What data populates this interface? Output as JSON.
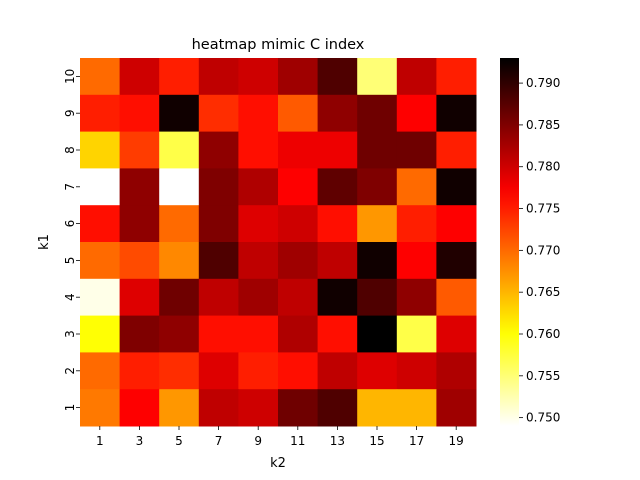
{
  "chart_data": {
    "type": "heatmap",
    "title": "heatmap mimic C index",
    "xlabel": "k2",
    "ylabel": "k1",
    "x_categories": [
      "1",
      "3",
      "5",
      "7",
      "9",
      "11",
      "13",
      "15",
      "17",
      "19"
    ],
    "y_categories": [
      "10",
      "9",
      "8",
      "7",
      "6",
      "5",
      "4",
      "3",
      "2",
      "1"
    ],
    "values": [
      [
        0.77,
        0.78,
        0.775,
        0.781,
        0.78,
        0.783,
        0.788,
        0.755,
        0.781,
        0.775
      ],
      [
        0.775,
        0.776,
        0.792,
        0.774,
        0.776,
        0.771,
        0.784,
        0.786,
        0.777,
        0.792
      ],
      [
        0.763,
        0.773,
        0.757,
        0.784,
        0.776,
        0.778,
        0.778,
        0.786,
        0.786,
        0.775
      ],
      [
        0.749,
        0.784,
        0.749,
        0.785,
        0.782,
        0.777,
        0.787,
        0.785,
        0.77,
        0.792
      ],
      [
        0.776,
        0.784,
        0.77,
        0.785,
        0.779,
        0.78,
        0.776,
        0.767,
        0.775,
        0.777
      ],
      [
        0.77,
        0.772,
        0.768,
        0.788,
        0.781,
        0.783,
        0.781,
        0.792,
        0.777,
        0.791
      ],
      [
        0.75,
        0.779,
        0.786,
        0.781,
        0.783,
        0.781,
        0.792,
        0.788,
        0.784,
        0.771
      ],
      [
        0.76,
        0.785,
        0.784,
        0.776,
        0.776,
        0.782,
        0.776,
        0.793,
        0.757,
        0.779
      ],
      [
        0.77,
        0.775,
        0.774,
        0.779,
        0.775,
        0.776,
        0.781,
        0.779,
        0.78,
        0.782
      ],
      [
        0.769,
        0.777,
        0.767,
        0.781,
        0.78,
        0.786,
        0.788,
        0.765,
        0.765,
        0.783
      ]
    ],
    "colorbar": {
      "min": 0.749,
      "max": 0.793,
      "ticks": [
        "0.750",
        "0.755",
        "0.760",
        "0.765",
        "0.770",
        "0.775",
        "0.780",
        "0.785",
        "0.790"
      ],
      "colormap": "hot_r"
    }
  }
}
